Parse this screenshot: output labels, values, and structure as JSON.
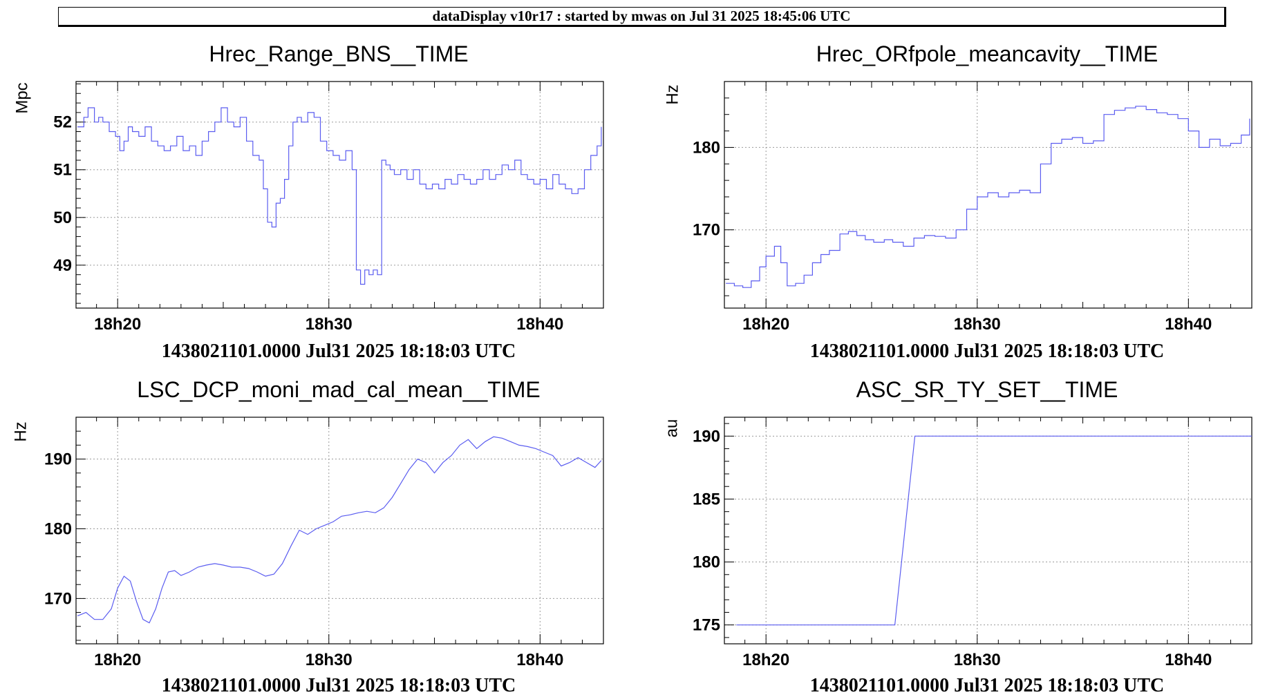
{
  "banner": "dataDisplay v10r17 : started by mwas on Jul 31 2025 18:45:06 UTC",
  "colors": {
    "trace": "#5a5cf0",
    "grid": "#9a9a9a",
    "axis": "#000000"
  },
  "time_ticks": [
    "18h20",
    "18h30",
    "18h40"
  ],
  "footer_text": "1438021101.0000 Jul31 2025 18:18:03 UTC",
  "chart_data": [
    {
      "type": "line",
      "title": "Hrec_Range_BNS__TIME",
      "ylabel": "Mpc",
      "footer": "1438021101.0000 Jul31 2025 18:18:03 UTC",
      "xlim": [
        18.03,
        43.0
      ],
      "xticks": [
        20,
        30,
        40
      ],
      "xticklabels": [
        "18h20",
        "18h30",
        "18h40"
      ],
      "ylim": [
        48.1,
        52.85
      ],
      "yticks": [
        49,
        50,
        51,
        52
      ],
      "step": true,
      "grid": true,
      "x": [
        18.1,
        18.4,
        18.6,
        18.9,
        19.1,
        19.3,
        19.6,
        19.9,
        20.1,
        20.3,
        20.5,
        20.7,
        21.0,
        21.3,
        21.6,
        21.9,
        22.2,
        22.5,
        22.8,
        23.1,
        23.4,
        23.7,
        24.0,
        24.3,
        24.6,
        24.9,
        25.2,
        25.5,
        25.8,
        26.1,
        26.4,
        26.7,
        26.9,
        27.1,
        27.3,
        27.5,
        27.7,
        27.9,
        28.1,
        28.3,
        28.5,
        28.7,
        29.0,
        29.3,
        29.6,
        29.9,
        30.2,
        30.5,
        30.8,
        31.1,
        31.3,
        31.5,
        31.7,
        31.9,
        32.1,
        32.3,
        32.5,
        32.7,
        32.9,
        33.1,
        33.4,
        33.7,
        34.0,
        34.3,
        34.6,
        34.9,
        35.2,
        35.5,
        35.8,
        36.1,
        36.4,
        36.7,
        37.0,
        37.3,
        37.6,
        37.9,
        38.2,
        38.5,
        38.8,
        39.1,
        39.4,
        39.7,
        40.0,
        40.3,
        40.6,
        40.9,
        41.2,
        41.5,
        41.8,
        42.1,
        42.4,
        42.7,
        42.9
      ],
      "y": [
        51.9,
        52.1,
        52.3,
        52.0,
        52.1,
        52.0,
        51.8,
        51.7,
        51.4,
        51.6,
        51.9,
        51.8,
        51.7,
        51.9,
        51.6,
        51.5,
        51.4,
        51.5,
        51.7,
        51.4,
        51.5,
        51.3,
        51.6,
        51.8,
        52.0,
        52.3,
        52.0,
        51.9,
        52.1,
        51.6,
        51.3,
        51.2,
        50.6,
        49.9,
        49.8,
        50.3,
        50.4,
        50.8,
        51.5,
        52.0,
        52.1,
        52.0,
        52.2,
        52.1,
        51.6,
        51.4,
        51.3,
        51.2,
        51.4,
        51.0,
        48.9,
        48.6,
        48.9,
        48.8,
        48.9,
        48.8,
        51.2,
        51.1,
        51.0,
        50.9,
        51.0,
        50.8,
        51.0,
        50.7,
        50.6,
        50.7,
        50.6,
        50.8,
        50.7,
        50.9,
        50.8,
        50.7,
        50.8,
        51.0,
        50.8,
        50.9,
        51.1,
        51.0,
        51.2,
        50.9,
        50.8,
        50.7,
        50.8,
        50.6,
        50.9,
        50.7,
        50.6,
        50.5,
        50.6,
        51.0,
        51.3,
        51.5,
        51.9
      ]
    },
    {
      "type": "line",
      "title": "Hrec_ORfpole_meancavity__TIME",
      "ylabel": "Hz",
      "footer": "1438021101.0000 Jul31 2025 18:18:03 UTC",
      "xlim": [
        18.03,
        43.0
      ],
      "xticks": [
        20,
        30,
        40
      ],
      "xticklabels": [
        "18h20",
        "18h30",
        "18h40"
      ],
      "ylim": [
        160.5,
        188.0
      ],
      "yticks": [
        170,
        180
      ],
      "step": true,
      "grid": true,
      "x": [
        18.1,
        18.5,
        18.9,
        19.3,
        19.7,
        20.0,
        20.4,
        20.7,
        21.0,
        21.4,
        21.8,
        22.2,
        22.6,
        23.0,
        23.5,
        23.9,
        24.3,
        24.7,
        25.1,
        25.6,
        26.0,
        26.5,
        27.0,
        27.5,
        28.0,
        28.5,
        29.0,
        29.5,
        30.0,
        30.5,
        31.0,
        31.5,
        32.0,
        32.5,
        33.0,
        33.5,
        34.0,
        34.5,
        35.0,
        35.5,
        36.0,
        36.5,
        37.0,
        37.5,
        38.0,
        38.5,
        39.0,
        39.5,
        40.0,
        40.5,
        41.0,
        41.5,
        42.0,
        42.5,
        42.9
      ],
      "y": [
        163.5,
        163.2,
        163.0,
        163.8,
        165.5,
        166.8,
        168.0,
        166.0,
        163.2,
        163.5,
        164.5,
        166.0,
        167.0,
        167.5,
        169.5,
        169.8,
        169.3,
        168.8,
        168.5,
        168.8,
        168.5,
        168.0,
        169.0,
        169.3,
        169.2,
        169.0,
        170.0,
        172.5,
        174.0,
        174.5,
        174.0,
        174.5,
        174.8,
        174.5,
        178.0,
        180.5,
        181.0,
        181.2,
        180.5,
        180.8,
        184.0,
        184.5,
        184.8,
        185.0,
        184.6,
        184.2,
        184.0,
        183.5,
        182.0,
        180.0,
        181.0,
        180.2,
        180.5,
        181.5,
        183.5
      ]
    },
    {
      "type": "line",
      "title": "LSC_DCP_moni_mad_cal_mean__TIME",
      "ylabel": "Hz",
      "footer": "1438021101.0000 Jul31 2025 18:18:03 UTC",
      "xlim": [
        18.03,
        43.0
      ],
      "xticks": [
        20,
        30,
        40
      ],
      "xticklabels": [
        "18h20",
        "18h30",
        "18h40"
      ],
      "ylim": [
        163.5,
        196.0
      ],
      "yticks": [
        170,
        180,
        190
      ],
      "step": false,
      "grid": true,
      "x": [
        18.1,
        18.5,
        18.9,
        19.3,
        19.7,
        20.0,
        20.3,
        20.6,
        20.9,
        21.2,
        21.5,
        21.8,
        22.1,
        22.4,
        22.7,
        23.0,
        23.4,
        23.8,
        24.2,
        24.6,
        25.0,
        25.4,
        25.8,
        26.2,
        26.6,
        27.0,
        27.4,
        27.8,
        28.2,
        28.6,
        29.0,
        29.4,
        29.8,
        30.2,
        30.6,
        31.0,
        31.4,
        31.8,
        32.2,
        32.6,
        33.0,
        33.4,
        33.8,
        34.2,
        34.6,
        35.0,
        35.4,
        35.8,
        36.2,
        36.6,
        37.0,
        37.4,
        37.8,
        38.2,
        38.6,
        39.0,
        39.4,
        39.8,
        40.2,
        40.6,
        41.0,
        41.4,
        41.8,
        42.2,
        42.6,
        42.9
      ],
      "y": [
        167.5,
        168.0,
        167.0,
        167.0,
        168.5,
        171.5,
        173.2,
        172.5,
        169.5,
        167.0,
        166.5,
        168.5,
        171.5,
        173.8,
        174.0,
        173.3,
        173.8,
        174.5,
        174.8,
        175.0,
        174.8,
        174.5,
        174.5,
        174.3,
        173.8,
        173.2,
        173.5,
        175.0,
        177.5,
        179.8,
        179.2,
        180.0,
        180.5,
        181.0,
        181.8,
        182.0,
        182.3,
        182.5,
        182.3,
        183.0,
        184.5,
        186.5,
        188.5,
        190.0,
        189.5,
        188.0,
        189.5,
        190.5,
        192.0,
        192.8,
        191.5,
        192.5,
        193.2,
        193.0,
        192.5,
        192.0,
        191.8,
        191.5,
        191.0,
        190.5,
        189.0,
        189.5,
        190.2,
        189.5,
        188.8,
        189.8
      ]
    },
    {
      "type": "line",
      "title": "ASC_SR_TY_SET__TIME",
      "ylabel": "au",
      "footer": "1438021101.0000 Jul31 2025 18:18:03 UTC",
      "xlim": [
        18.03,
        43.0
      ],
      "xticks": [
        20,
        30,
        40
      ],
      "xticklabels": [
        "18h20",
        "18h30",
        "18h40"
      ],
      "ylim": [
        173.5,
        191.5
      ],
      "yticks": [
        175,
        180,
        185,
        190
      ],
      "step": false,
      "grid": true,
      "x": [
        18.6,
        26.1,
        27.05,
        43.0
      ],
      "y": [
        175,
        175,
        190,
        190
      ]
    }
  ]
}
